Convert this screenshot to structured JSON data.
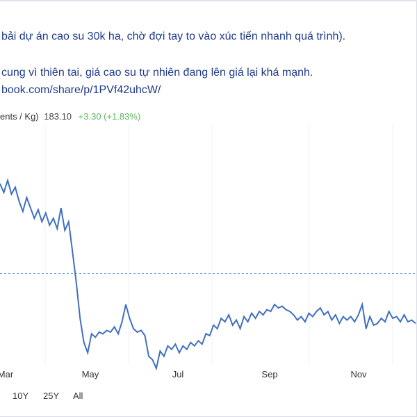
{
  "post": {
    "line1": "bải dự án cao su 30k ha, chờ đợi tay to vào xúc tiến nhanh quá trình).",
    "line2": "cung vì thiên tai, giá cao su tự nhiên đang lên giá lại khá mạnh.",
    "line3": "book.com/share/p/1PVf42uhcW/"
  },
  "quote": {
    "label": "ents / Kg)",
    "price": "183.10",
    "change": "+3.30 (+1.83%)",
    "change_color": "#5cb85c"
  },
  "colors": {
    "line": "#3f6fc1",
    "reference_line": "#7aa0d8"
  },
  "range_buttons": [
    "10Y",
    "25Y",
    "All"
  ],
  "chart_data": {
    "type": "line",
    "title": "",
    "xlabel": "",
    "ylabel": "",
    "x_ticks": [
      "Mar",
      "May",
      "Jul",
      "Sep",
      "Nov"
    ],
    "series": [
      {
        "values": [
          220,
          215,
          222,
          214,
          218,
          210,
          204,
          212,
          206,
          200,
          205,
          198,
          203,
          196,
          200,
          194,
          206,
          193,
          198,
          181,
          163,
          142,
          128,
          122,
          133,
          131,
          134,
          133,
          135,
          134,
          137,
          133,
          140,
          150,
          142,
          136,
          134,
          135,
          132,
          120,
          118,
          113,
          123,
          120,
          126,
          124,
          127,
          122,
          126,
          124,
          128,
          126,
          129,
          127,
          133,
          132,
          138,
          136,
          142,
          140,
          144,
          138,
          141,
          136,
          143,
          140,
          145,
          142,
          146,
          144,
          147,
          146,
          150,
          148,
          149,
          147,
          146,
          144,
          141,
          143,
          140,
          145,
          143,
          146,
          148,
          144,
          146,
          141,
          144,
          139,
          143,
          141,
          143,
          140,
          144,
          150,
          136,
          143,
          138,
          139,
          142,
          140,
          146,
          142,
          143,
          140,
          144,
          140,
          141,
          139
        ]
      }
    ],
    "reference_line": 168,
    "ylim": [
      115,
      250
    ]
  }
}
